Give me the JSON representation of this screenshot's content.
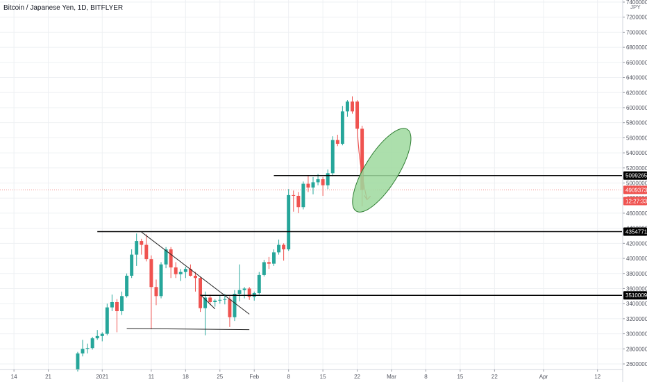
{
  "title": "Bitcoin / Japanese Yen, 1D, BITFLYER",
  "currency_unit": "JPY",
  "colors": {
    "up": "#26a69a",
    "down": "#ef5350",
    "grid": "#eef0f3",
    "axis_text": "#50535e",
    "line": "#000000",
    "ellipse_fill": "#9ed99e",
    "ellipse_stroke": "#2e7d32",
    "arrow": "#ef5350"
  },
  "chart_data": {
    "type": "candlestick",
    "title": "Bitcoin / Japanese Yen, 1D, BITFLYER",
    "xlabel": "",
    "ylabel": "",
    "ylim": [
      2500000,
      7400000
    ],
    "grid": true,
    "x_start": "2020-12-12",
    "x_end": "2021-04-17",
    "x_ticks": [
      {
        "date": "2020-12-14",
        "label": "14"
      },
      {
        "date": "2020-12-21",
        "label": "21"
      },
      {
        "date": "2021-01-01",
        "label": "2021"
      },
      {
        "date": "2021-01-11",
        "label": "11"
      },
      {
        "date": "2021-01-18",
        "label": "18"
      },
      {
        "date": "2021-01-25",
        "label": "25"
      },
      {
        "date": "2021-02-01",
        "label": "Feb"
      },
      {
        "date": "2021-02-08",
        "label": "8"
      },
      {
        "date": "2021-02-15",
        "label": "15"
      },
      {
        "date": "2021-02-22",
        "label": "22"
      },
      {
        "date": "2021-03-01",
        "label": "Mar"
      },
      {
        "date": "2021-03-08",
        "label": "8"
      },
      {
        "date": "2021-03-15",
        "label": "15"
      },
      {
        "date": "2021-03-22",
        "label": "22"
      },
      {
        "date": "2021-04-01",
        "label": "Apr"
      },
      {
        "date": "2021-04-12",
        "label": "12"
      }
    ],
    "y_ticks": [
      2600000,
      2800000,
      3000000,
      3200000,
      3400000,
      3600000,
      3800000,
      4000000,
      4200000,
      4400000,
      4600000,
      4800000,
      5000000,
      5200000,
      5400000,
      5600000,
      5800000,
      6000000,
      6200000,
      6400000,
      6600000,
      6800000,
      7000000,
      7200000,
      7400000
    ],
    "price_tags": [
      {
        "value": 5099265,
        "label": "5099265",
        "kind": "level"
      },
      {
        "value": 4909373,
        "label": "4909373",
        "kind": "last"
      },
      {
        "value": 4760000,
        "label": "12:27:33",
        "kind": "countdown"
      },
      {
        "value": 4354771,
        "label": "4354771",
        "kind": "level"
      },
      {
        "value": 3510009,
        "label": "3510009",
        "kind": "level"
      }
    ],
    "candles": [
      {
        "date": "2020-12-27",
        "open": 2520000,
        "high": 2760000,
        "low": 2500000,
        "close": 2740000
      },
      {
        "date": "2020-12-28",
        "open": 2740000,
        "high": 2920000,
        "low": 2700000,
        "close": 2800000
      },
      {
        "date": "2020-12-29",
        "open": 2800000,
        "high": 2870000,
        "low": 2740000,
        "close": 2810000
      },
      {
        "date": "2020-12-30",
        "open": 2810000,
        "high": 2960000,
        "low": 2790000,
        "close": 2940000
      },
      {
        "date": "2020-12-31",
        "open": 2940000,
        "high": 3050000,
        "low": 2920000,
        "close": 2970000
      },
      {
        "date": "2021-01-01",
        "open": 2970000,
        "high": 3020000,
        "low": 2900000,
        "close": 3000000
      },
      {
        "date": "2021-01-02",
        "open": 3000000,
        "high": 3400000,
        "low": 2980000,
        "close": 3350000
      },
      {
        "date": "2021-01-03",
        "open": 3350000,
        "high": 3520000,
        "low": 3300000,
        "close": 3420000
      },
      {
        "date": "2021-01-04",
        "open": 3420000,
        "high": 3460000,
        "low": 3020000,
        "close": 3300000
      },
      {
        "date": "2021-01-05",
        "open": 3300000,
        "high": 3560000,
        "low": 3250000,
        "close": 3500000
      },
      {
        "date": "2021-01-06",
        "open": 3500000,
        "high": 3800000,
        "low": 3480000,
        "close": 3770000
      },
      {
        "date": "2021-01-07",
        "open": 3770000,
        "high": 4120000,
        "low": 3740000,
        "close": 4050000
      },
      {
        "date": "2021-01-08",
        "open": 4050000,
        "high": 4330000,
        "low": 3900000,
        "close": 4230000
      },
      {
        "date": "2021-01-09",
        "open": 4230000,
        "high": 4260000,
        "low": 4050000,
        "close": 4180000
      },
      {
        "date": "2021-01-10",
        "open": 4180000,
        "high": 4320000,
        "low": 3960000,
        "close": 3990000
      },
      {
        "date": "2021-01-11",
        "open": 3990000,
        "high": 4040000,
        "low": 3060000,
        "close": 3620000
      },
      {
        "date": "2021-01-12",
        "open": 3620000,
        "high": 3720000,
        "low": 3380000,
        "close": 3500000
      },
      {
        "date": "2021-01-13",
        "open": 3500000,
        "high": 3950000,
        "low": 3470000,
        "close": 3920000
      },
      {
        "date": "2021-01-14",
        "open": 3920000,
        "high": 4150000,
        "low": 3870000,
        "close": 4120000
      },
      {
        "date": "2021-01-15",
        "open": 4120000,
        "high": 4150000,
        "low": 3740000,
        "close": 3880000
      },
      {
        "date": "2021-01-16",
        "open": 3880000,
        "high": 3950000,
        "low": 3740000,
        "close": 3790000
      },
      {
        "date": "2021-01-17",
        "open": 3790000,
        "high": 3860000,
        "low": 3700000,
        "close": 3820000
      },
      {
        "date": "2021-01-18",
        "open": 3820000,
        "high": 3890000,
        "low": 3740000,
        "close": 3860000
      },
      {
        "date": "2021-01-19",
        "open": 3860000,
        "high": 3920000,
        "low": 3760000,
        "close": 3770000
      },
      {
        "date": "2021-01-20",
        "open": 3770000,
        "high": 3820000,
        "low": 3560000,
        "close": 3740000
      },
      {
        "date": "2021-01-21",
        "open": 3740000,
        "high": 3750000,
        "low": 3290000,
        "close": 3340000
      },
      {
        "date": "2021-01-22",
        "open": 3340000,
        "high": 3560000,
        "low": 2980000,
        "close": 3480000
      },
      {
        "date": "2021-01-23",
        "open": 3480000,
        "high": 3520000,
        "low": 3380000,
        "close": 3420000
      },
      {
        "date": "2021-01-24",
        "open": 3420000,
        "high": 3460000,
        "low": 3360000,
        "close": 3440000
      },
      {
        "date": "2021-01-25",
        "open": 3440000,
        "high": 3510000,
        "low": 3400000,
        "close": 3450000
      },
      {
        "date": "2021-01-26",
        "open": 3450000,
        "high": 3530000,
        "low": 3390000,
        "close": 3460000
      },
      {
        "date": "2021-01-27",
        "open": 3460000,
        "high": 3500000,
        "low": 3090000,
        "close": 3220000
      },
      {
        "date": "2021-01-28",
        "open": 3220000,
        "high": 3580000,
        "low": 3170000,
        "close": 3530000
      },
      {
        "date": "2021-01-29",
        "open": 3530000,
        "high": 3920000,
        "low": 3430000,
        "close": 3580000
      },
      {
        "date": "2021-01-30",
        "open": 3580000,
        "high": 3620000,
        "low": 3470000,
        "close": 3600000
      },
      {
        "date": "2021-01-31",
        "open": 3600000,
        "high": 3620000,
        "low": 3450000,
        "close": 3490000
      },
      {
        "date": "2021-02-01",
        "open": 3490000,
        "high": 3560000,
        "low": 3440000,
        "close": 3540000
      },
      {
        "date": "2021-02-02",
        "open": 3540000,
        "high": 3820000,
        "low": 3520000,
        "close": 3780000
      },
      {
        "date": "2021-02-03",
        "open": 3780000,
        "high": 3980000,
        "low": 3760000,
        "close": 3950000
      },
      {
        "date": "2021-02-04",
        "open": 3950000,
        "high": 4020000,
        "low": 3860000,
        "close": 3930000
      },
      {
        "date": "2021-02-05",
        "open": 3930000,
        "high": 4120000,
        "low": 3900000,
        "close": 4080000
      },
      {
        "date": "2021-02-06",
        "open": 4080000,
        "high": 4250000,
        "low": 4050000,
        "close": 4180000
      },
      {
        "date": "2021-02-07",
        "open": 4180000,
        "high": 4200000,
        "low": 3970000,
        "close": 4120000
      },
      {
        "date": "2021-02-08",
        "open": 4120000,
        "high": 4920000,
        "low": 4100000,
        "close": 4840000
      },
      {
        "date": "2021-02-09",
        "open": 4840000,
        "high": 4900000,
        "low": 4620000,
        "close": 4830000
      },
      {
        "date": "2021-02-10",
        "open": 4830000,
        "high": 4880000,
        "low": 4600000,
        "close": 4680000
      },
      {
        "date": "2021-02-11",
        "open": 4680000,
        "high": 5020000,
        "low": 4650000,
        "close": 4990000
      },
      {
        "date": "2021-02-12",
        "open": 4990000,
        "high": 5100000,
        "low": 4880000,
        "close": 4940000
      },
      {
        "date": "2021-02-13",
        "open": 4940000,
        "high": 5080000,
        "low": 4850000,
        "close": 5010000
      },
      {
        "date": "2021-02-14",
        "open": 5010000,
        "high": 5120000,
        "low": 4970000,
        "close": 5050000
      },
      {
        "date": "2021-02-15",
        "open": 5050000,
        "high": 5080000,
        "low": 4830000,
        "close": 4970000
      },
      {
        "date": "2021-02-16",
        "open": 4970000,
        "high": 5180000,
        "low": 4920000,
        "close": 5130000
      },
      {
        "date": "2021-02-17",
        "open": 5130000,
        "high": 5620000,
        "low": 5090000,
        "close": 5570000
      },
      {
        "date": "2021-02-18",
        "open": 5570000,
        "high": 5640000,
        "low": 5490000,
        "close": 5520000
      },
      {
        "date": "2021-02-19",
        "open": 5520000,
        "high": 6020000,
        "low": 5500000,
        "close": 5950000
      },
      {
        "date": "2021-02-20",
        "open": 5950000,
        "high": 6100000,
        "low": 5880000,
        "close": 6080000
      },
      {
        "date": "2021-02-21",
        "open": 6080000,
        "high": 6150000,
        "low": 5920000,
        "close": 5950000
      },
      {
        "date": "2021-02-22",
        "open": 6080000,
        "high": 6100000,
        "low": 5700000,
        "close": 5720000
      },
      {
        "date": "2021-02-23",
        "open": 5720000,
        "high": 5760000,
        "low": 4690000,
        "close": 4909373
      }
    ],
    "annotations": {
      "horizontal_lines": [
        {
          "value": 5099265,
          "x_start": "2021-02-05"
        },
        {
          "value": 4354771,
          "x_start": "2020-12-31"
        },
        {
          "value": 3510009,
          "x_start": "2021-01-21"
        }
      ],
      "trendlines": [
        {
          "from": {
            "date": "2021-01-09",
            "value": 4350000
          },
          "to": {
            "date": "2021-01-31",
            "value": 3260000
          }
        },
        {
          "from": {
            "date": "2021-01-06",
            "value": 3070000
          },
          "to": {
            "date": "2021-01-31",
            "value": 3055000
          }
        },
        {
          "from": {
            "date": "2021-01-21",
            "value": 3520000
          },
          "to": {
            "date": "2021-01-24",
            "value": 3330000
          }
        }
      ],
      "arrow": {
        "from": {
          "date": "2021-02-22",
          "value": 5750000
        },
        "to": {
          "date": "2021-02-24",
          "value": 4780000
        }
      },
      "ellipse": {
        "cx_date": "2021-02-27",
        "cy_value": 5170000,
        "rx_days": 3.4,
        "ry_value": 640000,
        "rotate_deg": 32
      }
    }
  }
}
